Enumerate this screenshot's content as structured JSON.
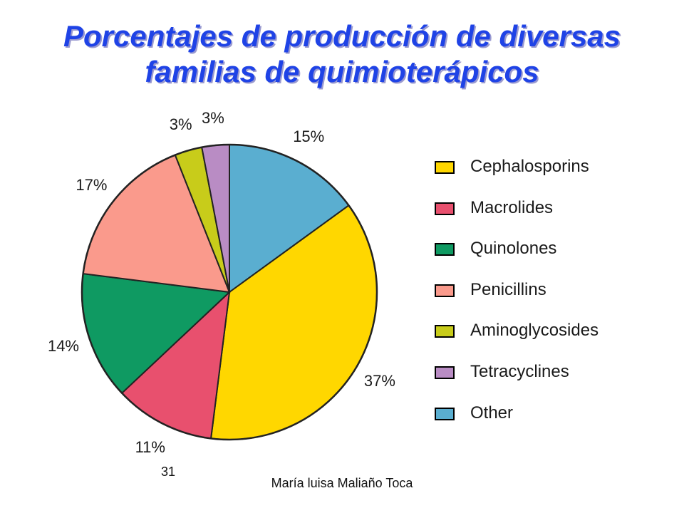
{
  "title": {
    "line1": "Porcentajes de producción de diversas",
    "line2": "familias de quimioterápicos"
  },
  "chart_data": {
    "type": "pie",
    "slices": [
      {
        "name": "Other",
        "value": 15,
        "label": "15%",
        "color": "#5aaed0"
      },
      {
        "name": "Cephalosporins",
        "value": 37,
        "label": "37%",
        "color": "#ffd700"
      },
      {
        "name": "Macrolides",
        "value": 11,
        "label": "11%",
        "color": "#e8506e"
      },
      {
        "name": "Quinolones",
        "value": 14,
        "label": "14%",
        "color": "#0f9a62"
      },
      {
        "name": "Penicillins",
        "value": 17,
        "label": "17%",
        "color": "#fa9a8c"
      },
      {
        "name": "Aminoglycosides",
        "value": 3,
        "label": "3%",
        "color": "#c8cc1a"
      },
      {
        "name": "Tetracyclines",
        "value": 3,
        "label": "3%",
        "color": "#b98cc4"
      }
    ],
    "legend": [
      {
        "label": "Cephalosporins",
        "color": "#ffd700"
      },
      {
        "label": "Macrolides",
        "color": "#e8506e"
      },
      {
        "label": "Quinolones",
        "color": "#0f9a62"
      },
      {
        "label": "Penicillins",
        "color": "#fa9a8c"
      },
      {
        "label": "Aminoglycosides",
        "color": "#c8cc1a"
      },
      {
        "label": "Tetracyclines",
        "color": "#b98cc4"
      },
      {
        "label": "Other",
        "color": "#5aaed0"
      }
    ],
    "legend_position": "right"
  },
  "footer": {
    "slide_number": "31",
    "author": "María luisa Maliaño Toca"
  }
}
